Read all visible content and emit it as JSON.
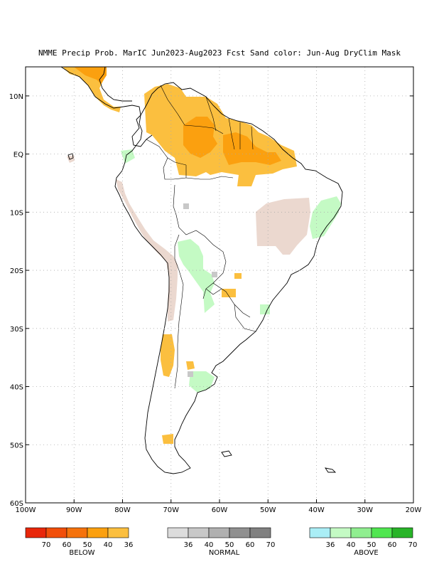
{
  "title": "NMME Precip Prob. MarIC  Jun2023-Aug2023 Fcst  Sand color: Jun-Aug DryClim Mask",
  "map": {
    "lon_range": [
      -100,
      -20
    ],
    "lat_range": [
      -60,
      15
    ],
    "lat_ticks": [
      {
        "value": 10,
        "label": "10N"
      },
      {
        "value": 0,
        "label": "EQ"
      },
      {
        "value": -10,
        "label": "10S"
      },
      {
        "value": -20,
        "label": "20S"
      },
      {
        "value": -30,
        "label": "30S"
      },
      {
        "value": -40,
        "label": "40S"
      },
      {
        "value": -50,
        "label": "50S"
      },
      {
        "value": -60,
        "label": "60S"
      }
    ],
    "lon_ticks": [
      {
        "value": -100,
        "label": "100W"
      },
      {
        "value": -90,
        "label": "90W"
      },
      {
        "value": -80,
        "label": "80W"
      },
      {
        "value": -70,
        "label": "70W"
      },
      {
        "value": -60,
        "label": "60W"
      },
      {
        "value": -50,
        "label": "50W"
      },
      {
        "value": -40,
        "label": "40W"
      },
      {
        "value": -30,
        "label": "30W"
      },
      {
        "value": -20,
        "label": "20W"
      }
    ]
  },
  "colors": {
    "below": [
      "#e8260a",
      "#f14e0a",
      "#f5720c",
      "#fba00f",
      "#fbbf3f"
    ],
    "normal": [
      "#dcdcdc",
      "#c8c8c8",
      "#b0b0b0",
      "#909090",
      "#808080"
    ],
    "above": [
      "#aaeef6",
      "#c4fac4",
      "#90ee90",
      "#50e650",
      "#28b428"
    ],
    "dry_mask": "#ebd8cf",
    "land_outline": "#000000",
    "grid": "#aaaaaa"
  },
  "legend": {
    "below": {
      "ticks": [
        "70",
        "60",
        "50",
        "40",
        "36"
      ],
      "label": "BELOW"
    },
    "normal": {
      "ticks": [
        "36",
        "40",
        "50",
        "60",
        "70"
      ],
      "label": "NORMAL"
    },
    "above": {
      "ticks": [
        "36",
        "40",
        "50",
        "60",
        "70"
      ],
      "label": "ABOVE"
    }
  },
  "regions": [
    {
      "category": "below",
      "level": "36-40",
      "lon": [
        -91,
        -85
      ],
      "lat": [
        12,
        15
      ]
    },
    {
      "category": "below",
      "level": "40-50",
      "lon": [
        -87,
        -84
      ],
      "lat": [
        9,
        14
      ]
    },
    {
      "category": "below",
      "level": "36-40",
      "lon": [
        -75,
        -67
      ],
      "lat": [
        5,
        11
      ]
    },
    {
      "category": "below",
      "level": "36-40",
      "lon": [
        -67,
        -60
      ],
      "lat": [
        2,
        10
      ]
    },
    {
      "category": "below",
      "level": "40-50",
      "lon": [
        -64,
        -58
      ],
      "lat": [
        4,
        7
      ]
    },
    {
      "category": "below",
      "level": "36-40",
      "lon": [
        -72,
        -62
      ],
      "lat": [
        -3,
        3
      ]
    },
    {
      "category": "below",
      "level": "40-50",
      "lon": [
        -56,
        -50
      ],
      "lat": [
        0,
        4
      ]
    },
    {
      "category": "below",
      "level": "36-40",
      "lon": [
        -60,
        -44
      ],
      "lat": [
        -5,
        2
      ]
    },
    {
      "category": "below",
      "level": "50-60",
      "lon": [
        -54,
        -52
      ],
      "lat": [
        -1,
        0
      ]
    },
    {
      "category": "below",
      "level": "36-40",
      "lon": [
        -73,
        -70
      ],
      "lat": [
        -40,
        -34
      ]
    },
    {
      "category": "below",
      "level": "36-40",
      "lon": [
        -74,
        -72
      ],
      "lat": [
        -50,
        -48
      ]
    },
    {
      "category": "above",
      "level": "36-40",
      "lon": [
        -67,
        -62
      ],
      "lat": [
        -24,
        -15
      ]
    },
    {
      "category": "above",
      "level": "36-40",
      "lon": [
        -40,
        -35
      ],
      "lat": [
        -15,
        -7
      ]
    },
    {
      "category": "above",
      "level": "36-40",
      "lon": [
        -67,
        -61
      ],
      "lat": [
        -42,
        -37
      ]
    },
    {
      "category": "dry_mask",
      "level": "",
      "lon": [
        -52,
        -40
      ],
      "lat": [
        -17,
        -8
      ]
    },
    {
      "category": "dry_mask",
      "level": "",
      "lon": [
        -71,
        -69
      ],
      "lat": [
        -28,
        -17
      ]
    }
  ]
}
